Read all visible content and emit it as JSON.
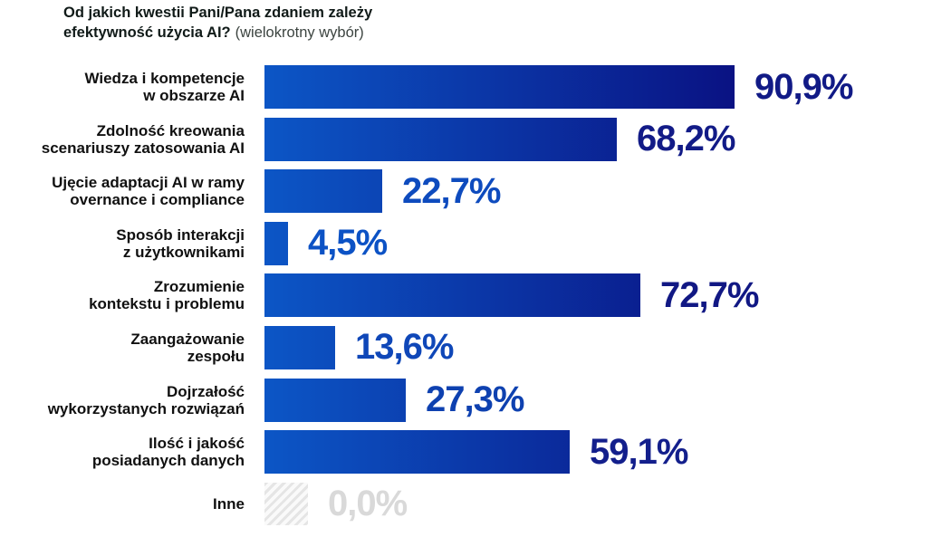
{
  "header": {
    "title_line1": "Od jakich kwestii Pani/Pana zdaniem zależy",
    "title_line2_bold": "efektywność użycia AI?",
    "title_line2_suffix": "(wielokrotny wybór)"
  },
  "colors": {
    "background": "#FFFFFF",
    "bar_gradient_start": "#0C56C6",
    "bar_gradient_end": "#0A1283",
    "title": "#101A18",
    "subtitle": "#3C4440",
    "category_label": "#101010",
    "zero_value_label": "#D9D9D9",
    "hatch_stripe": "#E5E5E5",
    "hatch_background": "#FAFAFA"
  },
  "chart_data": {
    "type": "bar",
    "orientation": "horizontal",
    "title": "Od jakich kwestii Pani/Pana zdaniem zależy efektywność użycia AI?",
    "subtitle": "(wielokrotny wybór)",
    "xlabel": "",
    "ylabel": "",
    "xlim": [
      0,
      100
    ],
    "unit": "%",
    "grid": false,
    "legend": false,
    "categories": [
      "Wiedza i kompetencje w obszarze AI",
      "Zdolność kreowania scenariuszy zatosowania AI",
      "Ujęcie adaptacji AI w ramy overnance i compliance",
      "Sposób interakcji z użytkownikami",
      "Zrozumienie kontekstu i problemu",
      "Zaangażowanie zespołu",
      "Dojrzałość wykorzystanych rozwiązań",
      "Ilość i jakość posiadanych danych",
      "Inne"
    ],
    "values": [
      90.9,
      68.2,
      22.7,
      4.5,
      72.7,
      13.6,
      27.3,
      59.1,
      0.0
    ],
    "value_labels": [
      "90,9%",
      "68,2%",
      "22,7%",
      "4,5%",
      "72,7%",
      "13,6%",
      "27,3%",
      "59,1%",
      "0,0%"
    ],
    "items": [
      {
        "label_lines": [
          "Wiedza i kompetencje",
          "w obszarze AI"
        ],
        "value": 90.9,
        "display": "90,9%",
        "value_color": "#111A86",
        "hatched": false
      },
      {
        "label_lines": [
          "Zdolność kreowania",
          "scenariuszy zatosowania AI"
        ],
        "value": 68.2,
        "display": "68,2%",
        "value_color": "#121B87",
        "hatched": false
      },
      {
        "label_lines": [
          "Ujęcie adaptacji AI w ramy",
          "overnance i compliance"
        ],
        "value": 22.7,
        "display": "22,7%",
        "value_color": "#0E4BBE",
        "hatched": false
      },
      {
        "label_lines": [
          "Sposób interakcji",
          "z użytkownikami"
        ],
        "value": 4.5,
        "display": "4,5%",
        "value_color": "#0C52C5",
        "hatched": false
      },
      {
        "label_lines": [
          "Zrozumienie",
          "kontekstu i problemu"
        ],
        "value": 72.7,
        "display": "72,7%",
        "value_color": "#111884",
        "hatched": false
      },
      {
        "label_lines": [
          "Zaangażowanie",
          "zespołu"
        ],
        "value": 13.6,
        "display": "13,6%",
        "value_color": "#0F47B8",
        "hatched": false
      },
      {
        "label_lines": [
          "Dojrzałość",
          "wykorzystanych rozwiązań"
        ],
        "value": 27.3,
        "display": "27,3%",
        "value_color": "#0E41B0",
        "hatched": false
      },
      {
        "label_lines": [
          "Ilość i jakość",
          "posiadanych danych"
        ],
        "value": 59.1,
        "display": "59,1%",
        "value_color": "#131F8C",
        "hatched": false
      },
      {
        "label_lines": [
          "Inne"
        ],
        "value": 0.0,
        "display": "0,0%",
        "value_color": "#D9D9D9",
        "hatched": true
      }
    ]
  }
}
